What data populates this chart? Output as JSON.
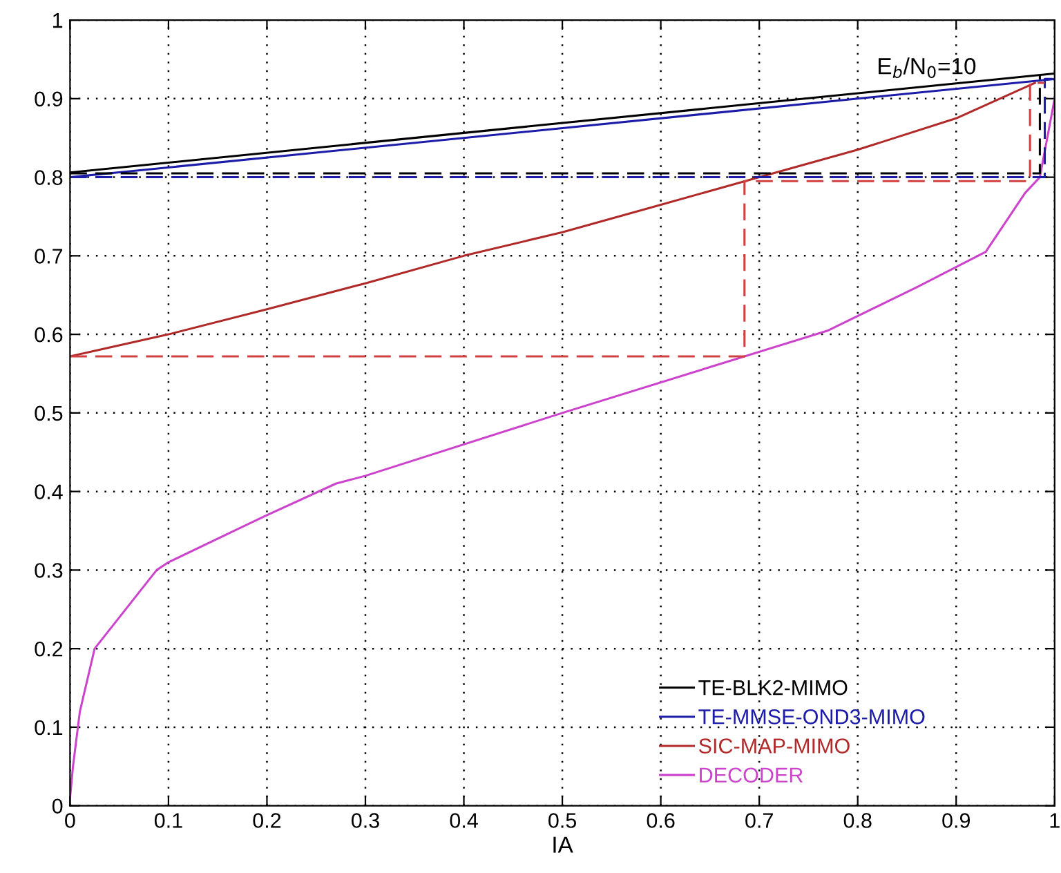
{
  "chart_data": {
    "type": "line",
    "xlabel": "IA",
    "xlim": [
      0,
      1
    ],
    "ylim": [
      0,
      1
    ],
    "xticks": [
      0,
      0.1,
      0.2,
      0.3,
      0.4,
      0.5,
      0.6,
      0.7,
      0.8,
      0.9,
      1
    ],
    "yticks": [
      0,
      0.1,
      0.2,
      0.3,
      0.4,
      0.5,
      0.6,
      0.7,
      0.8,
      0.9,
      1
    ],
    "grid": true,
    "legend": "bottom right",
    "marker": "none",
    "annotations": [
      {
        "text": "E$_{b}$/N$_{0}$=10",
        "x": 0.87,
        "y": 0.925
      }
    ],
    "series": [
      {
        "name": "TE-BLK2-MIMO",
        "color": "#000000",
        "line_style": "solid",
        "x": [
          0,
          1
        ],
        "values": [
          0.806,
          0.932
        ]
      },
      {
        "name": "TE-MMSE-OND3-MIMO",
        "color": "#1c1ca8",
        "line_style": "solid",
        "x": [
          0,
          1
        ],
        "values": [
          0.8,
          0.925
        ]
      },
      {
        "name": "SIC-MAP-MIMO",
        "color": "#b02a2a",
        "line_style": "solid",
        "x": [
          0,
          0.1,
          0.2,
          0.3,
          0.4,
          0.5,
          0.6,
          0.7,
          0.8,
          0.9,
          0.98
        ],
        "values": [
          0.572,
          0.6,
          0.632,
          0.665,
          0.7,
          0.73,
          0.765,
          0.8,
          0.835,
          0.875,
          0.92
        ]
      },
      {
        "name": "DECODER",
        "color": "#cc44cc",
        "line_style": "solid",
        "x": [
          0,
          0.003,
          0.01,
          0.025,
          0.088,
          0.1,
          0.2,
          0.27,
          0.3,
          0.5,
          0.68,
          0.77,
          0.86,
          0.93,
          0.97,
          0.985,
          1
        ],
        "values": [
          0.01,
          0.05,
          0.12,
          0.2,
          0.3,
          0.31,
          0.37,
          0.41,
          0.42,
          0.5,
          0.57,
          0.605,
          0.66,
          0.705,
          0.78,
          0.8,
          0.9
        ]
      },
      {
        "color": "#000000",
        "line_style": "dashed",
        "x": [
          0,
          0.985,
          0.985
        ],
        "values": [
          0.805,
          0.805,
          0.93
        ]
      },
      {
        "color": "#1c1ca8",
        "line_style": "dashed",
        "x": [
          0,
          0.99,
          0.99,
          1
        ],
        "values": [
          0.8,
          0.8,
          0.925,
          0.925
        ]
      },
      {
        "color": "#d04040",
        "line_style": "dashed",
        "x": [
          0,
          0.685,
          0.685,
          0.975,
          0.975,
          0.99
        ],
        "values": [
          0.572,
          0.572,
          0.795,
          0.795,
          0.92,
          0.92
        ]
      }
    ]
  }
}
